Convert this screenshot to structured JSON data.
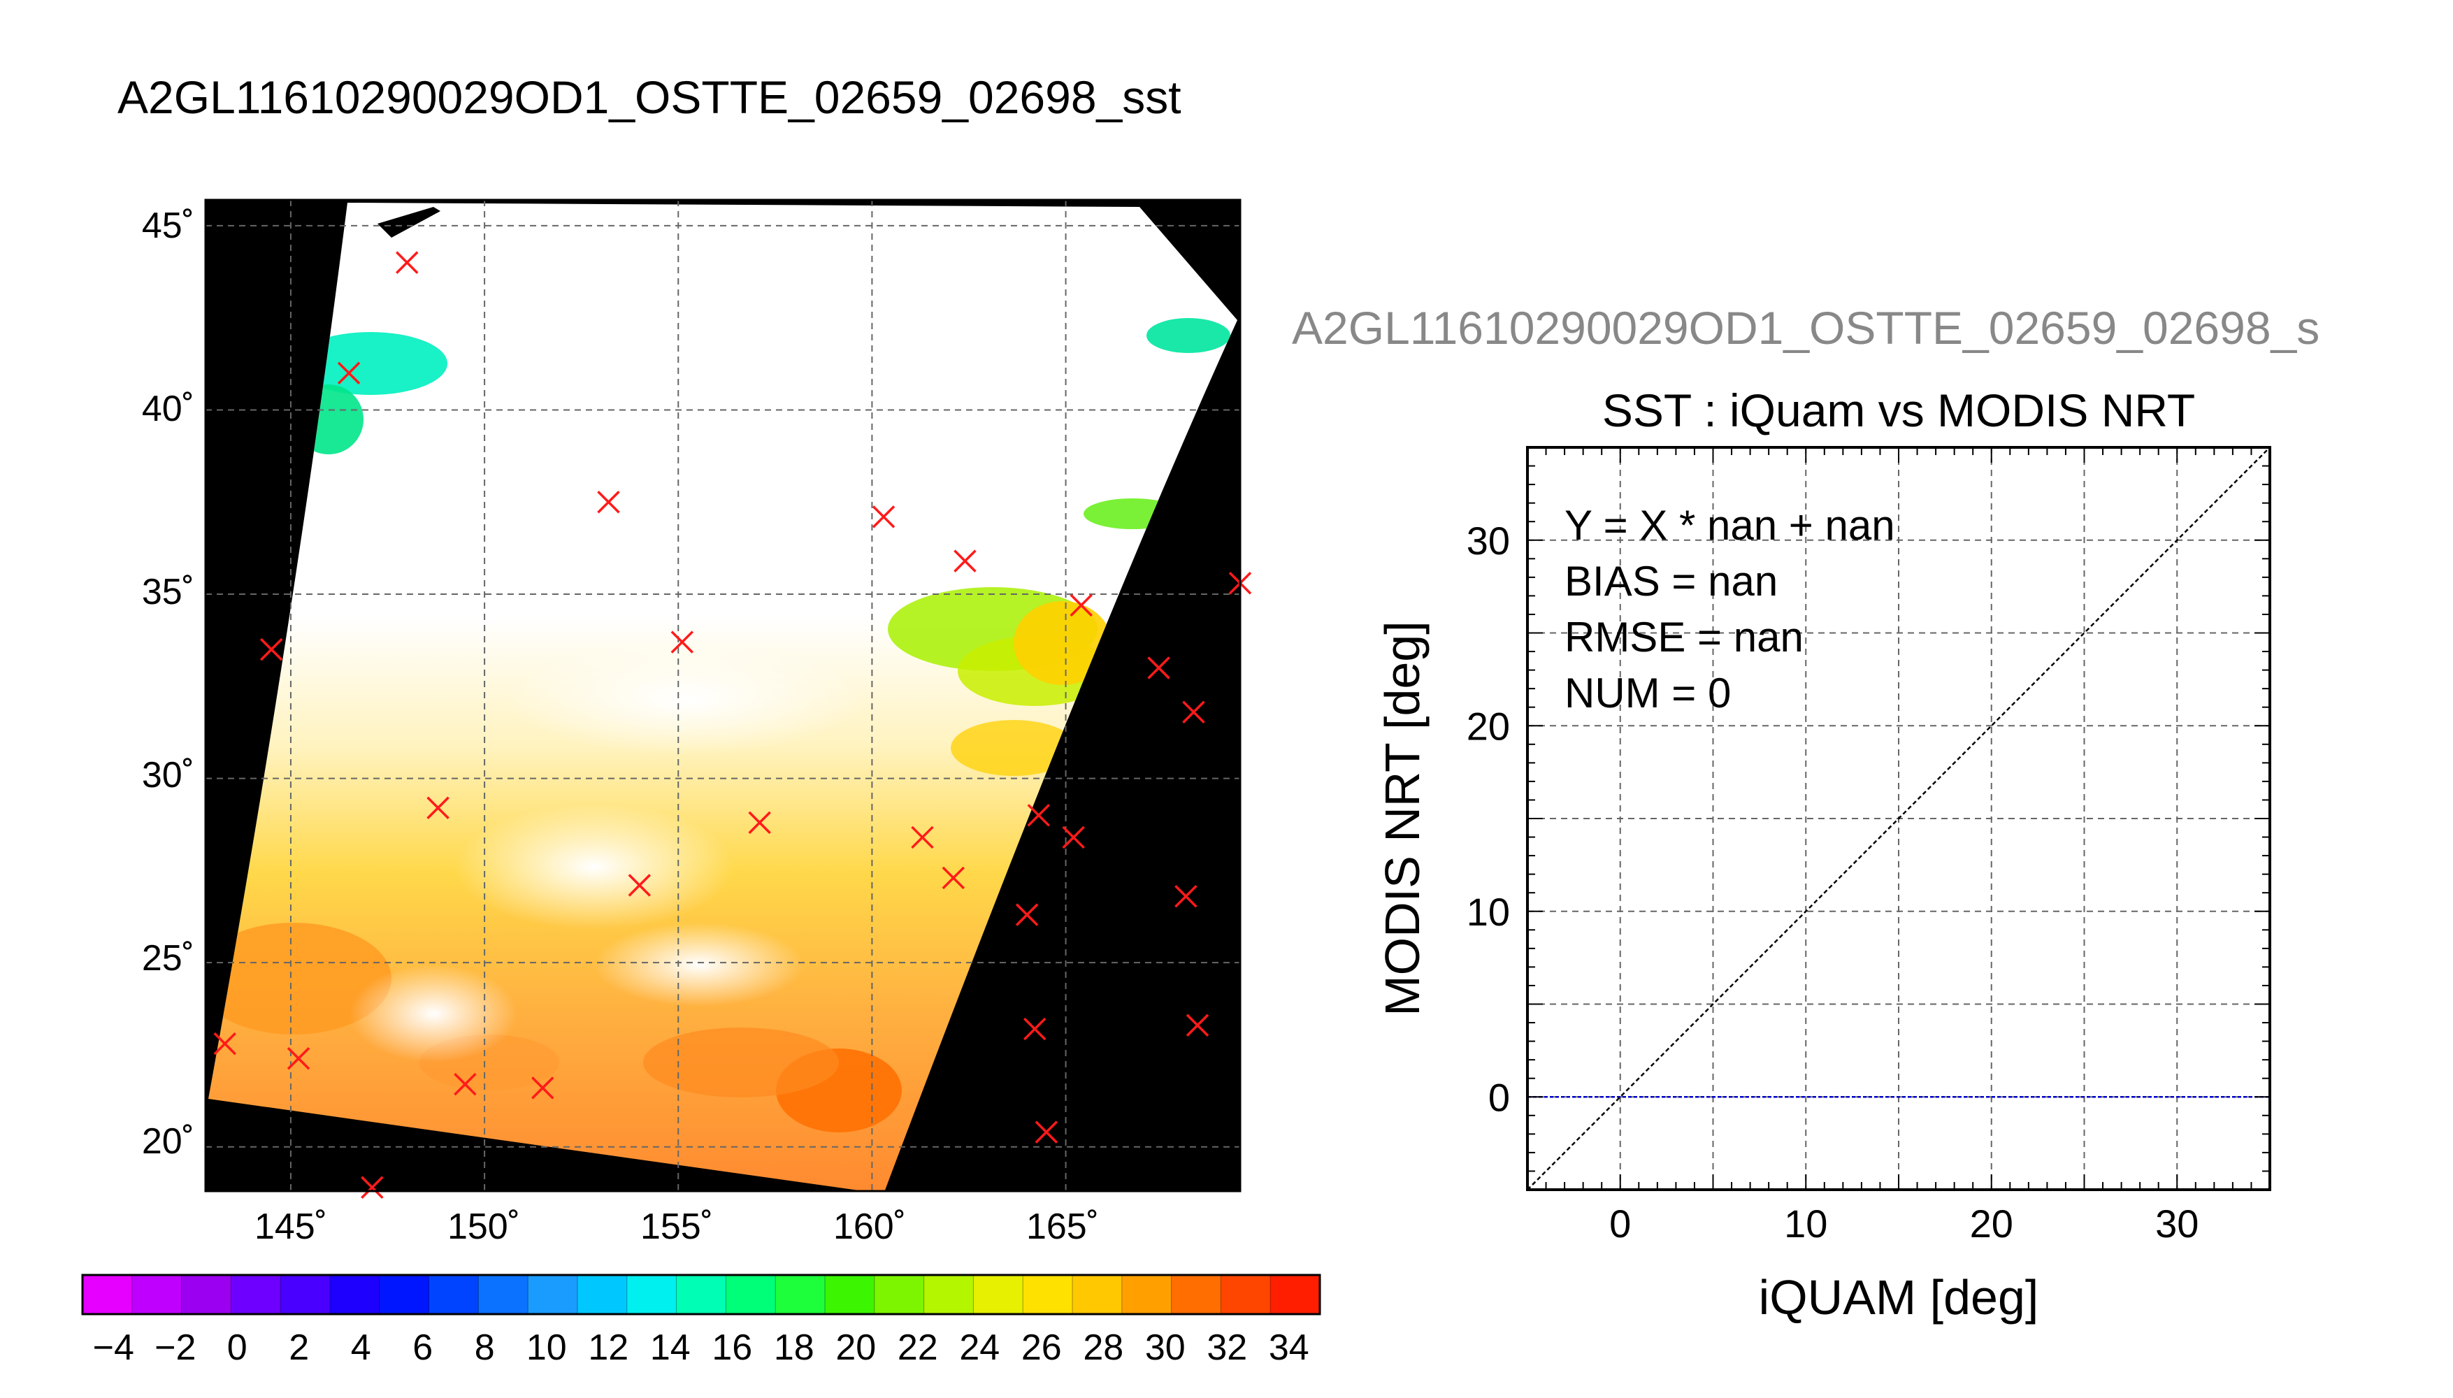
{
  "left_title": "A2GL11610290029OD1_OSTTE_02659_02698_sst",
  "right_title": "A2GL11610290029OD1_OSTTE_02659_02698_s",
  "chart_data": [
    {
      "type": "heatmap",
      "name": "map",
      "lat_ticks": [
        "45˚",
        "40˚",
        "35˚",
        "30˚",
        "25˚",
        "20˚"
      ],
      "lat_values": [
        45,
        40,
        35,
        30,
        25,
        20
      ],
      "lon_ticks": [
        "145˚",
        "150˚",
        "155˚",
        "160˚",
        "165˚"
      ],
      "lon_values": [
        145,
        150,
        155,
        160,
        165
      ],
      "lon_range": [
        142.8,
        169.5
      ],
      "lat_range": [
        18.8,
        45.7
      ],
      "grid": true,
      "colorbar": {
        "ticks": [
          "−4",
          "−2",
          "0",
          "2",
          "4",
          "6",
          "8",
          "10",
          "12",
          "14",
          "16",
          "18",
          "20",
          "22",
          "24",
          "26",
          "28",
          "30",
          "32",
          "34"
        ],
        "range": [
          -5,
          35
        ],
        "colors": [
          "#e600ff",
          "#c000ff",
          "#9b00f0",
          "#6e00ff",
          "#4a00ff",
          "#1e00ff",
          "#0016ff",
          "#0044ff",
          "#0a72ff",
          "#1a9cff",
          "#00c8ff",
          "#00f0ef",
          "#00ffb4",
          "#00ff78",
          "#1eff3c",
          "#3cf500",
          "#7df500",
          "#b4f500",
          "#e6f000",
          "#ffe100",
          "#ffc800",
          "#ffa000",
          "#ff6e00",
          "#ff4600",
          "#ff1e00"
        ]
      },
      "iquam_markers": [
        {
          "lon": 148.0,
          "lat": 44.0
        },
        {
          "lon": 146.5,
          "lat": 41.0
        },
        {
          "lon": 153.2,
          "lat": 37.5
        },
        {
          "lon": 160.3,
          "lat": 37.1
        },
        {
          "lon": 162.4,
          "lat": 35.9
        },
        {
          "lon": 165.4,
          "lat": 34.7
        },
        {
          "lon": 169.5,
          "lat": 35.3
        },
        {
          "lon": 144.5,
          "lat": 33.5
        },
        {
          "lon": 155.1,
          "lat": 33.7
        },
        {
          "lon": 167.4,
          "lat": 33.0
        },
        {
          "lon": 168.3,
          "lat": 31.8
        },
        {
          "lon": 148.8,
          "lat": 29.2
        },
        {
          "lon": 157.1,
          "lat": 28.8
        },
        {
          "lon": 164.3,
          "lat": 29.0
        },
        {
          "lon": 161.3,
          "lat": 28.4
        },
        {
          "lon": 165.2,
          "lat": 28.4
        },
        {
          "lon": 162.1,
          "lat": 27.3
        },
        {
          "lon": 154.0,
          "lat": 27.1
        },
        {
          "lon": 168.1,
          "lat": 26.8
        },
        {
          "lon": 164.0,
          "lat": 26.3
        },
        {
          "lon": 164.2,
          "lat": 23.2
        },
        {
          "lon": 168.4,
          "lat": 23.3
        },
        {
          "lon": 143.3,
          "lat": 22.8
        },
        {
          "lon": 145.2,
          "lat": 22.4
        },
        {
          "lon": 149.5,
          "lat": 21.7
        },
        {
          "lon": 151.5,
          "lat": 21.6
        },
        {
          "lon": 164.5,
          "lat": 20.4
        },
        {
          "lon": 147.1,
          "lat": 18.9
        }
      ]
    },
    {
      "type": "scatter",
      "name": "scatter",
      "title": "SST : iQuam vs MODIS NRT",
      "xlabel": "iQUAM [deg]",
      "ylabel": "MODIS NRT [deg]",
      "xlim": [
        -5,
        35
      ],
      "ylim": [
        -5,
        35
      ],
      "x_ticks": [
        0,
        10,
        20,
        30
      ],
      "y_ticks": [
        0,
        10,
        20,
        30
      ],
      "grid": true,
      "points": [],
      "reference_line": "y = x",
      "zero_line": 0,
      "stats": [
        "Y = X * nan + nan",
        "BIAS = nan",
        "RMSE = nan",
        "NUM = 0"
      ],
      "colors": {
        "identity_line": "#000000",
        "zero_line": "#0000cc"
      }
    }
  ]
}
